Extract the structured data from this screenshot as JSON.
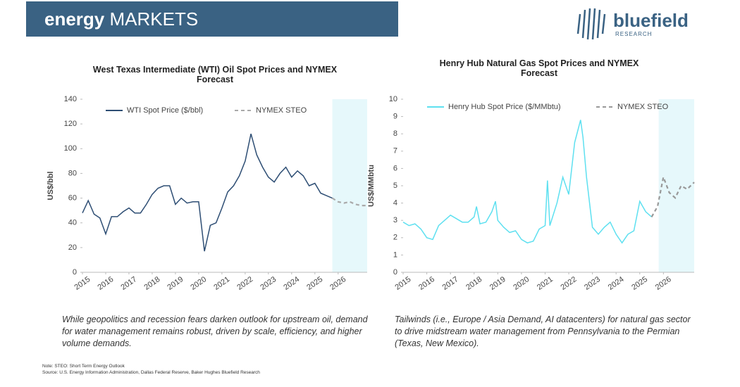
{
  "header": {
    "title_bold": "energy",
    "title_rest": "MARKETS",
    "logo_name": "bluefield",
    "logo_sub": "RESEARCH"
  },
  "chart_data": [
    {
      "type": "line",
      "title": "West Texas Intermediate (WTI) Oil Spot Prices and NYMEX Forecast",
      "ylabel": "US$/bbl",
      "xlim": [
        2015,
        2027.25
      ],
      "xticks": [
        2015,
        2016,
        2017,
        2018,
        2019,
        2020,
        2021,
        2022,
        2023,
        2024,
        2025,
        2026
      ],
      "ylim": [
        0,
        140
      ],
      "yticks": [
        0,
        20,
        40,
        60,
        80,
        100,
        120,
        140
      ],
      "forecast_shade": [
        2025.75,
        2027.25
      ],
      "shade_color": "#e6f8fb",
      "series": [
        {
          "name": "WTI Spot Price ($/bbl)",
          "color": "#2e4e74",
          "dashed": false,
          "x": [
            2015,
            2015.25,
            2015.5,
            2015.75,
            2016,
            2016.25,
            2016.5,
            2016.75,
            2017,
            2017.25,
            2017.5,
            2017.75,
            2018,
            2018.25,
            2018.5,
            2018.75,
            2019,
            2019.25,
            2019.5,
            2019.75,
            2020,
            2020.25,
            2020.5,
            2020.75,
            2021,
            2021.25,
            2021.5,
            2021.75,
            2022,
            2022.25,
            2022.5,
            2022.75,
            2023,
            2023.25,
            2023.5,
            2023.75,
            2024,
            2024.25,
            2024.5,
            2024.75,
            2025,
            2025.25,
            2025.5,
            2025.75
          ],
          "values": [
            48,
            58,
            47,
            44,
            31,
            45,
            45,
            49,
            52,
            48,
            48,
            55,
            63,
            68,
            70,
            70,
            55,
            60,
            56,
            57,
            57,
            17,
            38,
            40,
            52,
            65,
            70,
            78,
            90,
            112,
            95,
            85,
            77,
            73,
            80,
            85,
            77,
            82,
            78,
            70,
            72,
            64,
            62,
            60
          ]
        },
        {
          "name": "NYMEX STEO",
          "color": "#aaaaaa",
          "dashed": true,
          "x": [
            2025.75,
            2026,
            2026.25,
            2026.5,
            2026.75,
            2027,
            2027.25
          ],
          "values": [
            60,
            57,
            56,
            57,
            55,
            54,
            54
          ]
        }
      ],
      "caption": "While geopolitics and recession fears darken outlook for upstream oil, demand for water management remains robust, driven by scale, efficiency, and higher volume demands."
    },
    {
      "type": "line",
      "title": "Henry Hub Natural Gas Spot Prices and NYMEX Forecast",
      "ylabel": "US$/MMbtu",
      "xlim": [
        2015,
        2027.3
      ],
      "xticks": [
        2015,
        2016,
        2017,
        2018,
        2019,
        2020,
        2021,
        2022,
        2023,
        2024,
        2025,
        2026
      ],
      "ylim": [
        0,
        10
      ],
      "yticks": [
        0,
        1,
        2,
        3,
        4,
        5,
        6,
        7,
        8,
        9,
        10
      ],
      "forecast_shade": [
        2025.8,
        2027.3
      ],
      "shade_color": "#e6f8fb",
      "series": [
        {
          "name": "Henry Hub Spot Price ($/MMbtu)",
          "color": "#5ee0f0",
          "dashed": false,
          "x": [
            2015,
            2015.25,
            2015.5,
            2015.75,
            2016,
            2016.25,
            2016.5,
            2016.75,
            2017,
            2017.25,
            2017.5,
            2017.75,
            2018,
            2018.1,
            2018.25,
            2018.5,
            2018.75,
            2018.9,
            2019,
            2019.25,
            2019.5,
            2019.75,
            2020,
            2020.25,
            2020.5,
            2020.75,
            2021,
            2021.1,
            2021.2,
            2021.5,
            2021.75,
            2022,
            2022.25,
            2022.5,
            2022.6,
            2022.75,
            2023,
            2023.25,
            2023.5,
            2023.75,
            2024,
            2024.25,
            2024.5,
            2024.75,
            2025,
            2025.25,
            2025.5
          ],
          "values": [
            2.9,
            2.7,
            2.8,
            2.5,
            2.0,
            1.9,
            2.7,
            3.0,
            3.3,
            3.1,
            2.9,
            2.9,
            3.2,
            3.8,
            2.8,
            2.9,
            3.5,
            4.1,
            3.0,
            2.6,
            2.3,
            2.4,
            1.9,
            1.7,
            1.8,
            2.5,
            2.7,
            5.3,
            2.7,
            4.0,
            5.5,
            4.5,
            7.5,
            8.8,
            7.8,
            5.5,
            2.6,
            2.2,
            2.6,
            2.9,
            2.2,
            1.7,
            2.2,
            2.4,
            4.1,
            3.5,
            3.2
          ]
        },
        {
          "name": "NYMEX STEO",
          "color": "#999999",
          "dashed": true,
          "x": [
            2025.5,
            2025.75,
            2026,
            2026.25,
            2026.5,
            2026.75,
            2027,
            2027.3
          ],
          "values": [
            3.2,
            3.8,
            5.5,
            4.6,
            4.3,
            5.0,
            4.8,
            5.2
          ]
        }
      ],
      "caption": "Tailwinds (i.e., Europe / Asia Demand, AI datacenters) for natural gas sector to drive midstream water management from Pennsylvania to the Permian (Texas, New Mexico)."
    }
  ],
  "footer": {
    "note": "Note: STEO: Short Term Energy Outlook",
    "source": "Source: U.S. Energy Information Administration, Dallas Federal Reserve, Baker Hughes Bluefield Research"
  }
}
